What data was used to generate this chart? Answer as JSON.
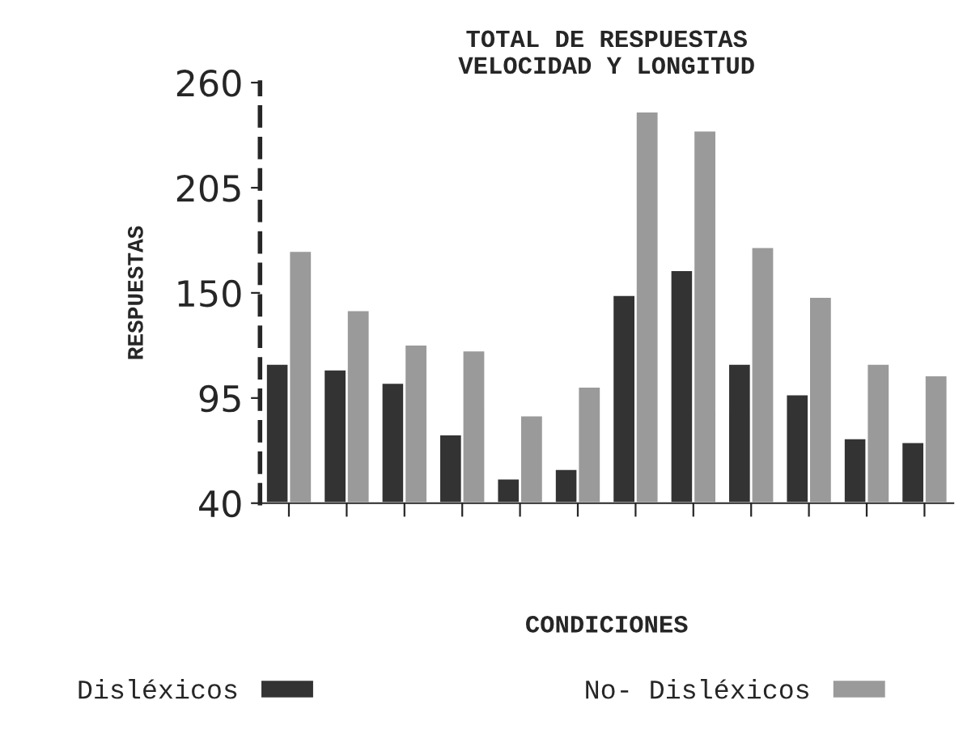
{
  "chart_data": {
    "type": "bar",
    "title": "TOTAL DE RESPUESTAS\nVELOCIDAD Y LONGITUD",
    "xlabel": "CONDICIONES",
    "ylabel": "RESPUESTAS",
    "categories": [
      null,
      null,
      null,
      null,
      null,
      null,
      null,
      null,
      null,
      null,
      null,
      null
    ],
    "series": [
      {
        "name": "Disléxicos",
        "color": "#333333",
        "values": [
          113,
          110,
          103,
          76,
          53,
          58,
          149,
          162,
          113,
          97,
          74,
          72
        ]
      },
      {
        "name": "No- Disléxicos",
        "color": "#9a9a9a",
        "values": [
          172,
          141,
          123,
          120,
          86,
          101,
          245,
          235,
          174,
          148,
          113,
          107
        ]
      }
    ],
    "ylim": [
      40,
      260
    ],
    "yticks": [
      40,
      95,
      150,
      205,
      260
    ],
    "grid": false,
    "legend": "bottom"
  }
}
